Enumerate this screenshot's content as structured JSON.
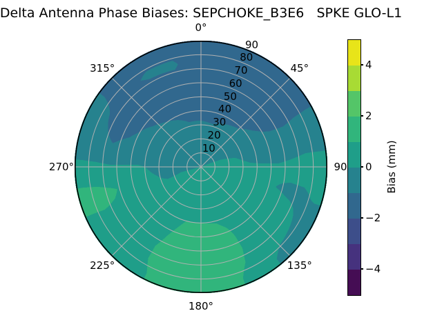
{
  "title": "Delta Antenna Phase Biases: SEPCHOKE_B3E6   SPKE GLO-L1",
  "chart_data": {
    "type": "heatmap",
    "subtype": "polar-filled-contour",
    "colormap": "viridis",
    "title": "Delta Antenna Phase Biases: SEPCHOKE_B3E6   SPKE GLO-L1",
    "angle_axis": {
      "unit": "degrees",
      "zero_location": "top",
      "direction": "clockwise",
      "tick_values": [
        0,
        45,
        90,
        135,
        180,
        225,
        270,
        315
      ],
      "tick_labels": [
        "0°",
        "45°",
        "90",
        "135°",
        "180°",
        "225°",
        "270°",
        "315°"
      ]
    },
    "radial_axis": {
      "max": 90,
      "tick_values": [
        10,
        20,
        30,
        40,
        50,
        60,
        70,
        80,
        90
      ],
      "tick_labels": [
        "10",
        "20",
        "30",
        "40",
        "50",
        "60",
        "70",
        "80",
        "90"
      ],
      "label_angle_deg": 22.5
    },
    "grid": {
      "color": "#b2b2b2",
      "spine_color": "#000000"
    },
    "field": {
      "azimuth_deg": [
        0,
        15,
        30,
        45,
        60,
        75,
        90,
        105,
        120,
        135,
        150,
        165,
        180,
        195,
        210,
        225,
        240,
        255,
        270,
        285,
        300,
        315,
        330,
        345
      ],
      "radius": [
        5,
        15,
        25,
        35,
        45,
        55,
        65,
        75,
        85
      ],
      "bias_mm": [
        [
          -0.3,
          -0.5,
          -0.8,
          -1.05,
          -1.4,
          -1.6,
          -1.7,
          -1.8,
          -1.8
        ],
        [
          -0.3,
          -0.5,
          -0.8,
          -1.1,
          -1.4,
          -1.6,
          -1.7,
          -1.8,
          -1.8
        ],
        [
          -0.2,
          -0.5,
          -0.7,
          -1.0,
          -1.3,
          -1.5,
          -1.6,
          -1.7,
          -1.6
        ],
        [
          -0.2,
          -0.4,
          -0.6,
          -0.9,
          -1.2,
          -1.4,
          -1.4,
          -1.3,
          -1.2
        ],
        [
          -0.1,
          -0.2,
          -0.4,
          -0.6,
          -0.9,
          -1.1,
          -1.2,
          -1.1,
          -1.05
        ],
        [
          0.1,
          0.1,
          0.0,
          -0.2,
          -0.4,
          -0.5,
          -0.4,
          -0.3,
          -0.4
        ],
        [
          0.2,
          0.2,
          0.2,
          0.1,
          0.1,
          0.1,
          0.2,
          0.3,
          0.4
        ],
        [
          0.2,
          0.3,
          0.3,
          0.2,
          0.1,
          0.0,
          -0.1,
          -0.1,
          0.1
        ],
        [
          0.3,
          0.4,
          0.5,
          0.4,
          0.4,
          0.3,
          0.2,
          0.0,
          -0.4
        ],
        [
          0.3,
          0.5,
          0.6,
          0.7,
          0.7,
          0.7,
          0.5,
          0.2,
          -0.3
        ],
        [
          0.4,
          0.6,
          0.7,
          0.8,
          0.9,
          0.9,
          0.9,
          0.8,
          0.5
        ],
        [
          0.4,
          0.6,
          0.8,
          0.9,
          1.05,
          1.3,
          1.4,
          1.4,
          1.3
        ],
        [
          0.4,
          0.6,
          0.8,
          0.9,
          1.1,
          1.3,
          1.5,
          1.5,
          1.4
        ],
        [
          0.3,
          0.6,
          0.7,
          0.9,
          1.1,
          1.3,
          1.4,
          1.5,
          1.4
        ],
        [
          0.2,
          0.4,
          0.6,
          0.7,
          0.8,
          0.9,
          1.0,
          1.0,
          0.9
        ],
        [
          0.1,
          0.3,
          0.4,
          0.6,
          0.7,
          0.7,
          0.8,
          0.8,
          0.8
        ],
        [
          0.0,
          0.1,
          0.2,
          0.4,
          0.6,
          0.7,
          0.8,
          0.8,
          0.7
        ],
        [
          0.0,
          0.0,
          -0.1,
          0.1,
          0.4,
          0.8,
          1.1,
          1.3,
          1.4
        ],
        [
          -0.1,
          -0.1,
          -0.2,
          -0.1,
          0.1,
          0.1,
          0.1,
          0.2,
          0.2
        ],
        [
          -0.1,
          -0.2,
          -0.3,
          -0.5,
          -0.7,
          -0.9,
          -1.0,
          -0.9,
          -0.7
        ],
        [
          -0.1,
          -0.2,
          -0.4,
          -0.6,
          -0.9,
          -1.1,
          -1.2,
          -1.0,
          -0.8
        ],
        [
          -0.1,
          -0.3,
          -0.5,
          -0.8,
          -1.05,
          -1.2,
          -1.3,
          -1.2,
          -1.3
        ],
        [
          -0.2,
          -0.4,
          -0.6,
          -0.9,
          -1.2,
          -1.4,
          -1.3,
          -0.9,
          -1.2
        ],
        [
          -0.3,
          -0.5,
          -0.8,
          -1.05,
          -1.3,
          -1.5,
          -1.3,
          -0.85,
          -1.3
        ]
      ]
    },
    "colorbar": {
      "label": "Bias (mm)",
      "range": [
        -5,
        5
      ],
      "level_step": 1,
      "tick_values": [
        4,
        2,
        0,
        -2,
        -4
      ],
      "tick_labels": [
        "4",
        "2",
        "0",
        "−2",
        "−4"
      ],
      "level_colors": [
        "#450d54",
        "#46327e",
        "#3d4e8a",
        "#31688e",
        "#26828e",
        "#1f9e89",
        "#31b57c",
        "#54c568",
        "#a8db34",
        "#e8e419"
      ]
    }
  }
}
